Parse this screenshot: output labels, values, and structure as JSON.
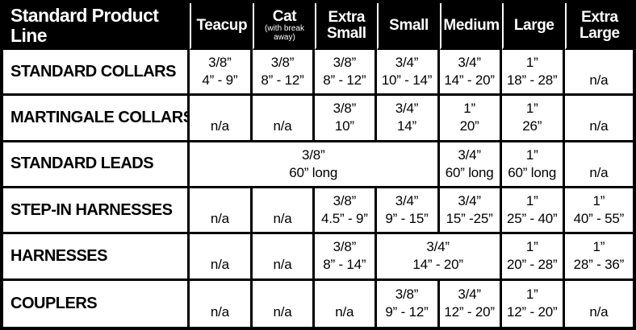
{
  "chart_data": {
    "type": "table",
    "title": "Standard Product Line",
    "colors": {
      "header_bg": "#000000",
      "header_text": "#ffffff",
      "cell_bg": "#ffffff",
      "cell_text": "#000000",
      "border": "#000000",
      "header_divider": "#ffffff"
    },
    "columns": [
      {
        "label": "Teacup",
        "sublabel": ""
      },
      {
        "label": "Cat",
        "sublabel": "(with break away)"
      },
      {
        "label": "Extra Small",
        "sublabel": ""
      },
      {
        "label": "Small",
        "sublabel": ""
      },
      {
        "label": "Medium",
        "sublabel": ""
      },
      {
        "label": "Large",
        "sublabel": ""
      },
      {
        "label": "Extra Large",
        "sublabel": ""
      }
    ],
    "col_widths_pct": [
      29.6,
      10.0,
      9.9,
      9.8,
      10.0,
      9.9,
      10.0,
      10.8
    ],
    "rows": [
      {
        "name": "STANDARD COLLARS",
        "cells": [
          {
            "colspan": 1,
            "line1": "3/8”",
            "line2": "4” - 9”"
          },
          {
            "colspan": 1,
            "line1": "3/8”",
            "line2": "8” - 12”"
          },
          {
            "colspan": 1,
            "line1": "3/8”",
            "line2": "8” - 12”"
          },
          {
            "colspan": 1,
            "line1": "3/4”",
            "line2": "10” - 14”"
          },
          {
            "colspan": 1,
            "line1": "3/4”",
            "line2": "14” - 20”"
          },
          {
            "colspan": 1,
            "line1": "1”",
            "line2": "18” - 28”"
          },
          {
            "colspan": 1,
            "line1": "",
            "line2": "n/a"
          }
        ]
      },
      {
        "name": "MARTINGALE COLLARS",
        "cells": [
          {
            "colspan": 1,
            "line1": "",
            "line2": "n/a"
          },
          {
            "colspan": 1,
            "line1": "",
            "line2": "n/a"
          },
          {
            "colspan": 1,
            "line1": "3/8”",
            "line2": "10”"
          },
          {
            "colspan": 1,
            "line1": "3/4”",
            "line2": "14”"
          },
          {
            "colspan": 1,
            "line1": "1”",
            "line2": "20”"
          },
          {
            "colspan": 1,
            "line1": "1”",
            "line2": "26”"
          },
          {
            "colspan": 1,
            "line1": "",
            "line2": "n/a"
          }
        ]
      },
      {
        "name": "STANDARD LEADS",
        "cells": [
          {
            "colspan": 4,
            "line1": "3/8”",
            "line2": "60” long"
          },
          {
            "colspan": 1,
            "line1": "3/4”",
            "line2": "60” long"
          },
          {
            "colspan": 1,
            "line1": "1”",
            "line2": "60” long"
          },
          {
            "colspan": 1,
            "line1": "",
            "line2": "n/a"
          }
        ]
      },
      {
        "name": "STEP-IN HARNESSES",
        "cells": [
          {
            "colspan": 1,
            "line1": "",
            "line2": "n/a"
          },
          {
            "colspan": 1,
            "line1": "",
            "line2": "n/a"
          },
          {
            "colspan": 1,
            "line1": "3/8”",
            "line2": "4.5” - 9”"
          },
          {
            "colspan": 1,
            "line1": "3/4”",
            "line2": "9” - 15”"
          },
          {
            "colspan": 1,
            "line1": "3/4”",
            "line2": "15” -25”"
          },
          {
            "colspan": 1,
            "line1": "1”",
            "line2": "25” - 40”"
          },
          {
            "colspan": 1,
            "line1": "1”",
            "line2": "40” - 55”"
          }
        ]
      },
      {
        "name": "HARNESSES",
        "cells": [
          {
            "colspan": 1,
            "line1": "",
            "line2": "n/a"
          },
          {
            "colspan": 1,
            "line1": "",
            "line2": "n/a"
          },
          {
            "colspan": 1,
            "line1": "3/8”",
            "line2": "8” - 14”"
          },
          {
            "colspan": 2,
            "line1": "3/4”",
            "line2": "14” - 20”"
          },
          {
            "colspan": 1,
            "line1": "1”",
            "line2": "20” - 28”"
          },
          {
            "colspan": 1,
            "line1": "1”",
            "line2": "28” - 36”"
          }
        ]
      },
      {
        "name": "COUPLERS",
        "cells": [
          {
            "colspan": 1,
            "line1": "",
            "line2": "n/a"
          },
          {
            "colspan": 1,
            "line1": "",
            "line2": "n/a"
          },
          {
            "colspan": 1,
            "line1": "",
            "line2": "n/a"
          },
          {
            "colspan": 1,
            "line1": "3/8”",
            "line2": "9” - 12”"
          },
          {
            "colspan": 1,
            "line1": "3/4”",
            "line2": "12” - 20”"
          },
          {
            "colspan": 1,
            "line1": "1”",
            "line2": "12” - 20”"
          },
          {
            "colspan": 1,
            "line1": "",
            "line2": "n/a"
          }
        ]
      }
    ]
  }
}
